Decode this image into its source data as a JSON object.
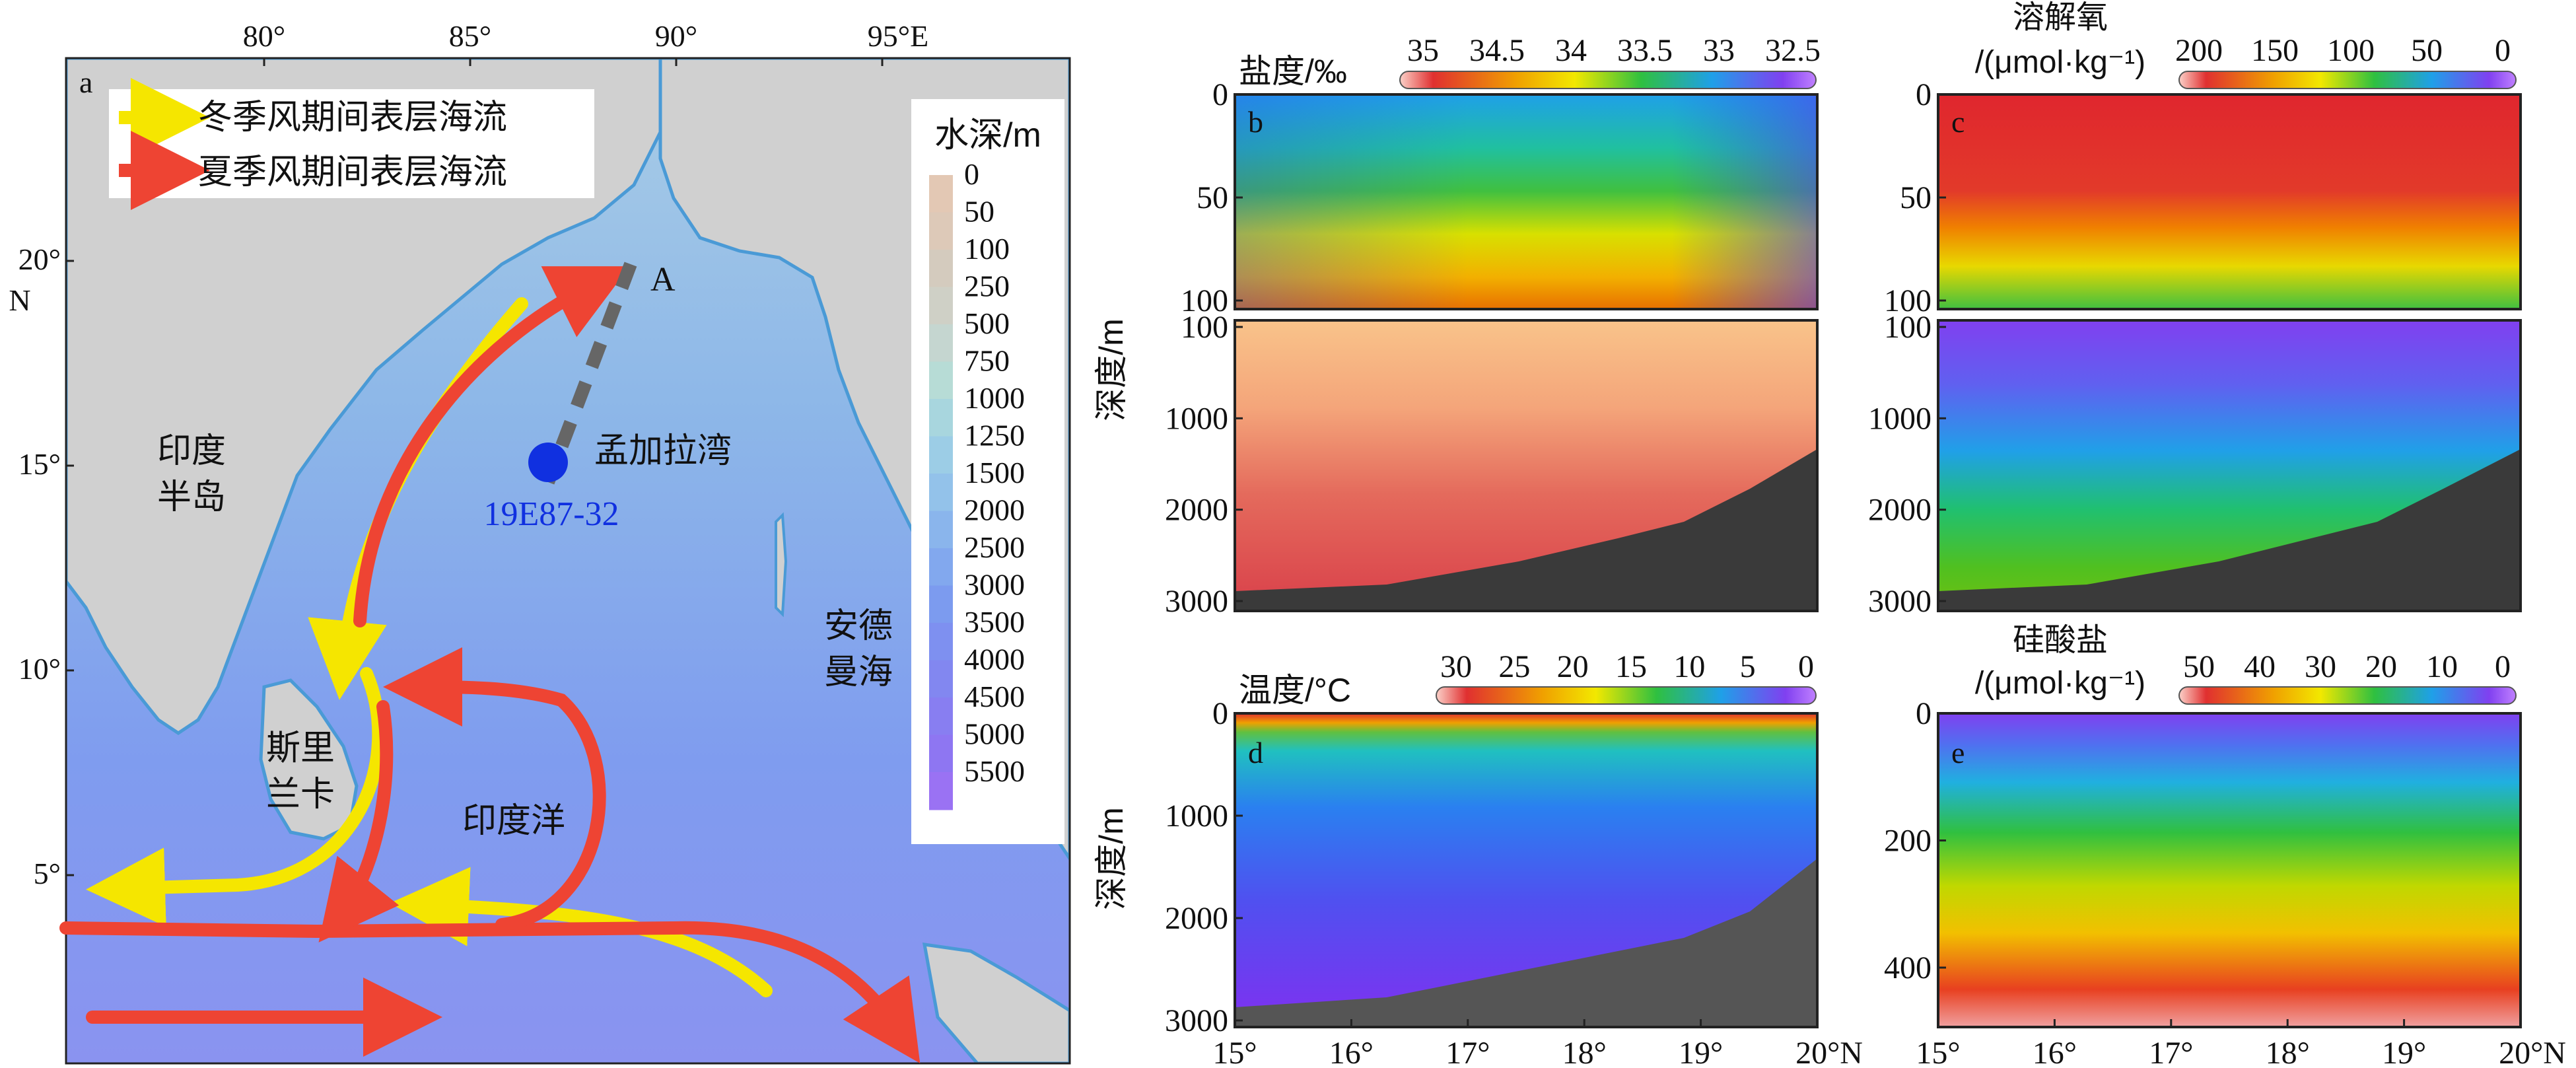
{
  "map": {
    "panel_label": "a",
    "lon_ticks": [
      "80°",
      "85°",
      "90°",
      "95°E"
    ],
    "lat_ticks": [
      "20°",
      "15°",
      "10°",
      "5°"
    ],
    "lat_unit": "N",
    "legend": {
      "winter": "冬季风期间表层海流",
      "summer": "夏季风期间表层海流"
    },
    "depth_legend": {
      "title": "水深/m",
      "levels": [
        "0",
        "50",
        "100",
        "250",
        "500",
        "750",
        "1000",
        "1250",
        "1500",
        "2000",
        "2500",
        "3000",
        "3500",
        "4000",
        "4500",
        "5000",
        "5500"
      ]
    },
    "labels": {
      "india": [
        "印度",
        "半岛"
      ],
      "sri_lanka": [
        "斯里",
        "兰卡"
      ],
      "bay": "孟加拉湾",
      "indian_ocean": "印度洋",
      "andaman": [
        "安德",
        "曼海"
      ],
      "transect_end": "A",
      "station": "19E87-32"
    },
    "colors": {
      "winter_current": "#f5e600",
      "summer_current": "#ee4433",
      "station": "#1030e0",
      "transect": "#666666"
    }
  },
  "sections": {
    "x_ticks": [
      "15°",
      "16°",
      "17°",
      "18°",
      "19°",
      "20°N"
    ],
    "b": {
      "label": "b",
      "title": "盐度/‰",
      "colorbar": [
        "35",
        "34.5",
        "34",
        "33.5",
        "33",
        "32.5"
      ],
      "depth_upper": [
        "0",
        "50",
        "100"
      ],
      "depth_lower": [
        "100",
        "1000",
        "2000",
        "3000"
      ]
    },
    "c": {
      "label": "c",
      "title": [
        "溶解氧",
        "/(μmol·kg⁻¹)"
      ],
      "colorbar": [
        "200",
        "150",
        "100",
        "50",
        "0"
      ],
      "depth_upper": [
        "0",
        "50",
        "100"
      ],
      "depth_lower": [
        "100",
        "1000",
        "2000",
        "3000"
      ]
    },
    "d": {
      "label": "d",
      "title": "温度/°C",
      "colorbar": [
        "30",
        "25",
        "20",
        "15",
        "10",
        "5",
        "0"
      ],
      "depth": [
        "0",
        "1000",
        "2000",
        "3000"
      ]
    },
    "e": {
      "label": "e",
      "title": [
        "硅酸盐",
        "/(μmol·kg⁻¹)"
      ],
      "colorbar": [
        "50",
        "40",
        "30",
        "20",
        "10",
        "0"
      ],
      "depth": [
        "0",
        "200",
        "400"
      ]
    },
    "y_axis_label": "深度/m"
  }
}
